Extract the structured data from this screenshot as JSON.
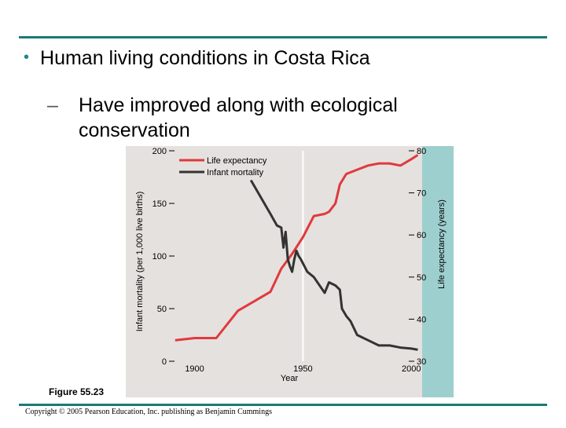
{
  "slide": {
    "title": "Human living conditions in Costa Rica",
    "subtitle_dash": "–",
    "subtitle_line1": "Have improved along with ecological",
    "subtitle_line2": "conservation",
    "figure_label": "Figure 55.23",
    "copyright": "Copyright © 2005 Pearson Education, Inc. publishing as Benjamin Cummings"
  },
  "colors": {
    "accent": "#1a7a7a",
    "plot_bg": "#e5e1de",
    "right_panel": "#9ecfcf",
    "life_expectancy": "#e0393e",
    "infant_mortality": "#333333"
  },
  "chart_data": {
    "type": "line",
    "xlabel": "Year",
    "ylabel_left": "Infant mortality (per 1,000 live births)",
    "ylabel_right": "Life expectancy (years)",
    "xlim": [
      1890,
      2005
    ],
    "ylim_left": [
      0,
      200
    ],
    "ylim_right": [
      30,
      80
    ],
    "x_ticks": [
      "1900",
      "1950",
      "2000"
    ],
    "y_ticks_left": [
      "0",
      "50",
      "100",
      "150",
      "200"
    ],
    "y_ticks_right": [
      "30",
      "40",
      "50",
      "60",
      "70",
      "80"
    ],
    "legend": [
      "Life expectancy",
      "Infant mortality"
    ],
    "series": [
      {
        "name": "Life expectancy",
        "axis": "right",
        "x": [
          1891,
          1900,
          1910,
          1920,
          1930,
          1935,
          1940,
          1945,
          1950,
          1955,
          1960,
          1962,
          1965,
          1967,
          1970,
          1975,
          1980,
          1985,
          1990,
          1995,
          2000,
          2003
        ],
        "y": [
          35,
          35.5,
          35.5,
          42,
          45,
          46.5,
          52,
          55.5,
          59.5,
          64.5,
          65,
          65.5,
          67.5,
          72,
          74.5,
          75.5,
          76.5,
          77,
          77,
          76.5,
          78,
          79
        ]
      },
      {
        "name": "Infant mortality",
        "axis": "left",
        "x": [
          1926,
          1935,
          1938,
          1940,
          1941,
          1942,
          1943,
          1944,
          1945,
          1946,
          1947,
          1948,
          1949,
          1950,
          1952,
          1955,
          1960,
          1962,
          1965,
          1967,
          1968,
          1970,
          1972,
          1975,
          1980,
          1985,
          1990,
          1995,
          2000,
          2003
        ],
        "y": [
          172,
          140,
          129,
          127,
          108,
          123,
          97,
          90,
          85,
          97,
          105,
          100,
          97,
          93,
          85,
          80,
          65,
          75,
          72,
          68,
          50,
          43,
          38,
          25,
          20,
          15,
          15,
          13,
          12,
          11
        ]
      }
    ]
  }
}
